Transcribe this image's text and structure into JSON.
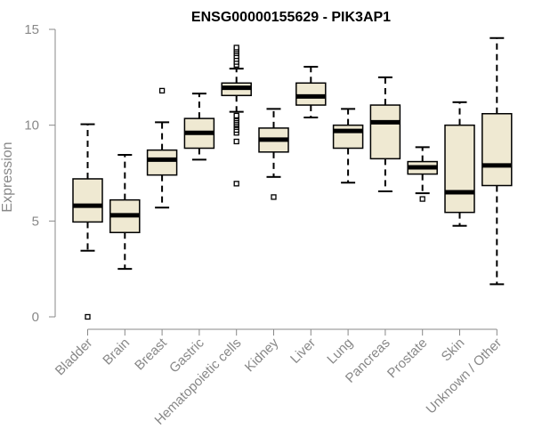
{
  "chart_data": {
    "type": "boxplot",
    "title": "ENSG00000155629 - PIK3AP1",
    "xlabel": "",
    "ylabel": "Expression",
    "ylim": [
      0,
      15
    ],
    "yticks": [
      0,
      5,
      10,
      15
    ],
    "grid": false,
    "legend": "none",
    "colors": {
      "box_fill": "#efe9d2",
      "box_stroke": "#000000",
      "median": "#000000",
      "axis": "#888888",
      "label": "#888888"
    },
    "categories": [
      "Bladder",
      "Brain",
      "Breast",
      "Gastric",
      "Hematopoietic cells",
      "Kidney",
      "Liver",
      "Lung",
      "Pancreas",
      "Prostate",
      "Skin",
      "Unknown / Other"
    ],
    "tick_labels": [
      "Bladder",
      "Brain",
      "Breast",
      "Gastric",
      "Hematopoietic cells",
      "Kidney",
      "Liver",
      "Lung",
      "Pancreas",
      "Prostate",
      "Skin",
      "Unknown / Other"
    ],
    "boxes": [
      {
        "name": "Bladder",
        "whislo": 3.45,
        "q1": 4.95,
        "med": 5.8,
        "q3": 7.2,
        "whishi": 10.05,
        "fliers": [
          0.0
        ]
      },
      {
        "name": "Brain",
        "whislo": 2.5,
        "q1": 4.4,
        "med": 5.3,
        "q3": 6.1,
        "whishi": 8.45,
        "fliers": []
      },
      {
        "name": "Breast",
        "whislo": 5.7,
        "q1": 7.4,
        "med": 8.2,
        "q3": 8.7,
        "whishi": 10.15,
        "fliers": [
          11.8
        ]
      },
      {
        "name": "Gastric",
        "whislo": 8.2,
        "q1": 8.8,
        "med": 9.6,
        "q3": 10.35,
        "whishi": 11.65,
        "fliers": []
      },
      {
        "name": "Hematopoietic cells",
        "whislo": 10.7,
        "q1": 11.55,
        "med": 11.95,
        "q3": 12.2,
        "whishi": 12.95,
        "fliers": [
          6.95,
          9.15,
          9.6,
          9.75,
          9.9,
          10.0,
          10.05,
          10.15,
          10.25,
          10.35,
          10.45,
          10.5,
          13.15,
          13.3,
          13.45,
          13.6,
          13.75,
          13.85,
          13.95,
          14.05
        ]
      },
      {
        "name": "Kidney",
        "whislo": 7.3,
        "q1": 8.6,
        "med": 9.25,
        "q3": 9.85,
        "whishi": 10.85,
        "fliers": [
          6.25
        ]
      },
      {
        "name": "Liver",
        "whislo": 10.4,
        "q1": 11.05,
        "med": 11.5,
        "q3": 12.2,
        "whishi": 13.05,
        "fliers": []
      },
      {
        "name": "Lung",
        "whislo": 7.0,
        "q1": 8.8,
        "med": 9.7,
        "q3": 10.0,
        "whishi": 10.85,
        "fliers": []
      },
      {
        "name": "Pancreas",
        "whislo": 6.55,
        "q1": 8.25,
        "med": 10.15,
        "q3": 11.05,
        "whishi": 12.5,
        "fliers": []
      },
      {
        "name": "Prostate",
        "whislo": 6.45,
        "q1": 7.45,
        "med": 7.8,
        "q3": 8.1,
        "whishi": 8.85,
        "fliers": [
          6.15
        ]
      },
      {
        "name": "Skin",
        "whislo": 4.75,
        "q1": 5.45,
        "med": 6.5,
        "q3": 10.0,
        "whishi": 11.2,
        "fliers": []
      },
      {
        "name": "Unknown / Other",
        "whislo": 1.7,
        "q1": 6.85,
        "med": 7.9,
        "q3": 10.6,
        "whishi": 14.55,
        "fliers": []
      }
    ]
  }
}
